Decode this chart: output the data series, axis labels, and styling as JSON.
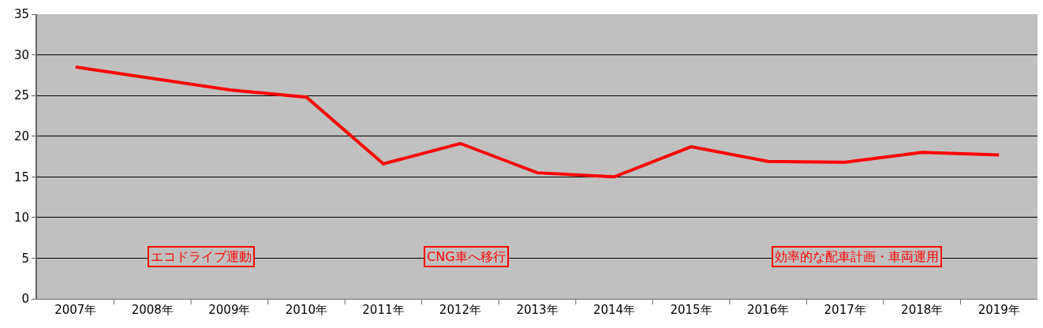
{
  "chart_data": {
    "type": "line",
    "categories": [
      "2007年",
      "2008年",
      "2009年",
      "2010年",
      "2011年",
      "2012年",
      "2013年",
      "2014年",
      "2015年",
      "2016年",
      "2017年",
      "2018年",
      "2019年"
    ],
    "series": [
      {
        "color": "#ff0000",
        "values": [
          28.5,
          27.1,
          25.7,
          24.8,
          16.6,
          19.1,
          15.5,
          15.0,
          18.7,
          16.9,
          16.8,
          18.0,
          17.7
        ]
      }
    ],
    "ylim": [
      0,
      35
    ],
    "yticks": [
      0,
      5,
      10,
      15,
      20,
      25,
      30,
      35
    ],
    "grid": "y",
    "marker": "none",
    "line_style": "solid",
    "annotations": [
      "エコドライブ運動",
      "CNG車へ移行",
      "効率的な配車計画・車両運用"
    ]
  }
}
